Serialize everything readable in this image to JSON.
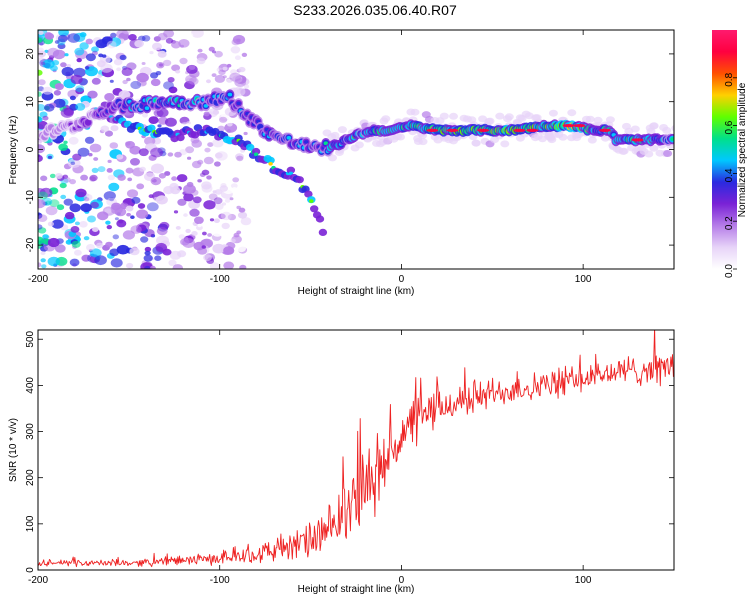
{
  "title": "S233.2026.035.06.40.R07",
  "colors": {
    "trace": "#ee2222",
    "axis": "#000000",
    "background": "#ffffff"
  },
  "chart_data": [
    {
      "type": "heatmap",
      "xlabel": "Height of straight line (km)",
      "ylabel": "Frequency (Hz)",
      "xlim": [
        -200,
        150
      ],
      "ylim": [
        -25,
        25
      ],
      "xticks": [
        "-200",
        "-100",
        "0",
        "100"
      ],
      "yticks": [
        "-20",
        "-10",
        "0",
        "10",
        "20"
      ],
      "colorbar": {
        "label": "Normalized spectral amplitude",
        "range": [
          0,
          1
        ],
        "ticks": [
          "0.0",
          "0.2",
          "0.4",
          "0.6",
          "0.8"
        ],
        "colormap": [
          "#ffffff",
          "#e7d3f8",
          "#b57ce8",
          "#7a22d6",
          "#2a2ae0",
          "#00c8ff",
          "#00e08a",
          "#60ff00",
          "#ffd000",
          "#ff5000",
          "#ff0040",
          "#ff1a6e"
        ]
      },
      "ridge": [
        {
          "x": -200,
          "y": 3,
          "a": 0.2
        },
        {
          "x": -180,
          "y": 5,
          "a": 0.25
        },
        {
          "x": -160,
          "y": 9,
          "a": 0.35
        },
        {
          "x": -148,
          "y": 9,
          "a": 0.5
        },
        {
          "x": -135,
          "y": 10,
          "a": 0.5
        },
        {
          "x": -120,
          "y": 10,
          "a": 0.55
        },
        {
          "x": -105,
          "y": 10,
          "a": 0.45
        },
        {
          "x": -95,
          "y": 11,
          "a": 0.45
        },
        {
          "x": -85,
          "y": 7,
          "a": 0.35
        },
        {
          "x": -75,
          "y": 4,
          "a": 0.45
        },
        {
          "x": -65,
          "y": 2,
          "a": 0.5
        },
        {
          "x": -55,
          "y": 1,
          "a": 0.45
        },
        {
          "x": -45,
          "y": 0,
          "a": 0.45
        },
        {
          "x": -35,
          "y": 1,
          "a": 0.55
        },
        {
          "x": -25,
          "y": 3,
          "a": 0.55
        },
        {
          "x": -15,
          "y": 4,
          "a": 0.6
        },
        {
          "x": -5,
          "y": 4,
          "a": 0.6
        },
        {
          "x": 5,
          "y": 5,
          "a": 0.65
        },
        {
          "x": 20,
          "y": 4,
          "a": 0.75
        },
        {
          "x": 40,
          "y": 4,
          "a": 0.7
        },
        {
          "x": 60,
          "y": 4,
          "a": 0.78
        },
        {
          "x": 80,
          "y": 5,
          "a": 0.7
        },
        {
          "x": 95,
          "y": 5,
          "a": 0.85
        },
        {
          "x": 105,
          "y": 4,
          "a": 0.6
        },
        {
          "x": 115,
          "y": 4,
          "a": 0.65
        },
        {
          "x": 118,
          "y": 2,
          "a": 0.6
        },
        {
          "x": 130,
          "y": 2,
          "a": 0.65
        },
        {
          "x": 150,
          "y": 2,
          "a": 0.55
        }
      ],
      "branches": [
        {
          "x": -160,
          "y": 7,
          "a": 0.35
        },
        {
          "x": -150,
          "y": 5,
          "a": 0.45
        },
        {
          "x": -140,
          "y": 4,
          "a": 0.45
        },
        {
          "x": -125,
          "y": 3,
          "a": 0.4
        },
        {
          "x": -110,
          "y": 4,
          "a": 0.4
        },
        {
          "x": -100,
          "y": 3,
          "a": 0.4
        },
        {
          "x": -90,
          "y": 2,
          "a": 0.45
        },
        {
          "x": -80,
          "y": -1,
          "a": 0.5
        },
        {
          "x": -72,
          "y": -3,
          "a": 0.5
        },
        {
          "x": -68,
          "y": -5,
          "a": 0.4
        },
        {
          "x": -60,
          "y": -5,
          "a": 0.35
        },
        {
          "x": -52,
          "y": -9,
          "a": 0.45
        },
        {
          "x": -48,
          "y": -12,
          "a": 0.4
        },
        {
          "x": -42,
          "y": -18,
          "a": 0.25
        }
      ]
    },
    {
      "type": "line",
      "xlabel": "Height of straight line (km)",
      "ylabel": "SNR (10 * v/v)",
      "xlim": [
        -200,
        150
      ],
      "ylim": [
        0,
        520
      ],
      "xticks": [
        "-200",
        "-100",
        "0",
        "100"
      ],
      "yticks": [
        "0",
        "100",
        "200",
        "300",
        "400",
        "500"
      ],
      "series": [
        {
          "name": "SNR",
          "envelope": [
            {
              "x": -200,
              "mean": 15,
              "noise": 6
            },
            {
              "x": -150,
              "mean": 15,
              "noise": 7
            },
            {
              "x": -100,
              "mean": 25,
              "noise": 12
            },
            {
              "x": -80,
              "mean": 35,
              "noise": 20
            },
            {
              "x": -60,
              "mean": 50,
              "noise": 30
            },
            {
              "x": -40,
              "mean": 80,
              "noise": 50
            },
            {
              "x": -30,
              "mean": 130,
              "noise": 70
            },
            {
              "x": -20,
              "mean": 180,
              "noise": 80
            },
            {
              "x": -10,
              "mean": 230,
              "noise": 70
            },
            {
              "x": 0,
              "mean": 290,
              "noise": 60
            },
            {
              "x": 10,
              "mean": 330,
              "noise": 50
            },
            {
              "x": 20,
              "mean": 350,
              "noise": 40
            },
            {
              "x": 40,
              "mean": 375,
              "noise": 35
            },
            {
              "x": 60,
              "mean": 390,
              "noise": 30
            },
            {
              "x": 80,
              "mean": 400,
              "noise": 30
            },
            {
              "x": 100,
              "mean": 415,
              "noise": 30
            },
            {
              "x": 120,
              "mean": 430,
              "noise": 30
            },
            {
              "x": 150,
              "mean": 440,
              "noise": 35
            }
          ]
        }
      ]
    }
  ]
}
